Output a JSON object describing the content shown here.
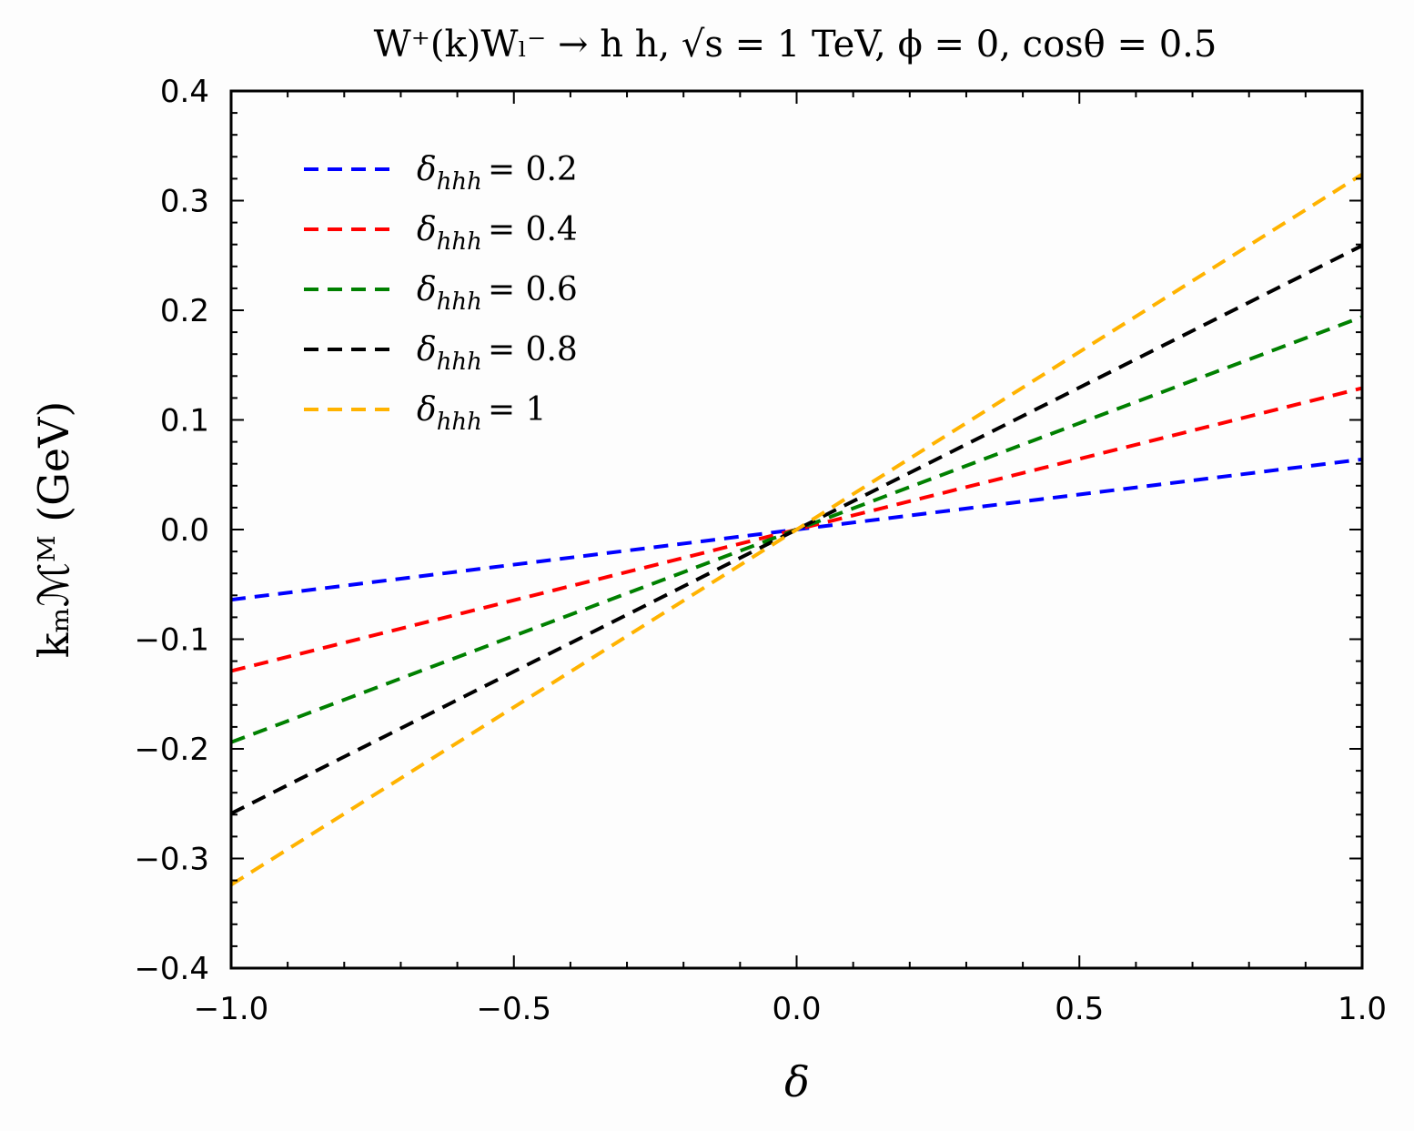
{
  "chart_data": {
    "type": "line",
    "title": "W⁺(k)Wₗ⁻ → h h,  √s = 1 TeV,  ϕ = 0, cosθ = 0.5",
    "xlabel": "δ",
    "ylabel": "kₘℳᴹ (GeV)",
    "xlim": [
      -1.0,
      1.0
    ],
    "ylim": [
      -0.4,
      0.4
    ],
    "xticks": [
      -1.0,
      -0.5,
      0.0,
      0.5,
      1.0
    ],
    "xtick_labels": [
      "−1.0",
      "−0.5",
      "0.0",
      "0.5",
      "1.0"
    ],
    "yticks": [
      -0.4,
      -0.3,
      -0.2,
      -0.1,
      0.0,
      0.1,
      0.2,
      0.3,
      0.4
    ],
    "ytick_labels": [
      "−0.4",
      "−0.3",
      "−0.2",
      "−0.1",
      "0.0",
      "0.1",
      "0.2",
      "0.3",
      "0.4"
    ],
    "grid": false,
    "legend_position": "top-left",
    "line_style": "dashed",
    "series": [
      {
        "name": "δhhh = 0.2",
        "legend_symbol": "δ",
        "legend_sub": "hhh",
        "legend_value": "= 0.2",
        "color": "#0000ff",
        "x": [
          -1.0,
          1.0
        ],
        "y": [
          -0.064,
          0.064
        ]
      },
      {
        "name": "δhhh = 0.4",
        "legend_symbol": "δ",
        "legend_sub": "hhh",
        "legend_value": "= 0.4",
        "color": "#ff0000",
        "x": [
          -1.0,
          1.0
        ],
        "y": [
          -0.129,
          0.129
        ]
      },
      {
        "name": "δhhh = 0.6",
        "legend_symbol": "δ",
        "legend_sub": "hhh",
        "legend_value": "= 0.6",
        "color": "#008000",
        "x": [
          -1.0,
          1.0
        ],
        "y": [
          -0.194,
          0.194
        ]
      },
      {
        "name": "δhhh = 0.8",
        "legend_symbol": "δ",
        "legend_sub": "hhh",
        "legend_value": "= 0.8",
        "color": "#000000",
        "x": [
          -1.0,
          1.0
        ],
        "y": [
          -0.259,
          0.259
        ]
      },
      {
        "name": "δhhh = 1",
        "legend_symbol": "δ",
        "legend_sub": "hhh",
        "legend_value": "= 1",
        "color": "#ffb300",
        "x": [
          -1.0,
          1.0
        ],
        "y": [
          -0.324,
          0.324
        ]
      }
    ]
  }
}
